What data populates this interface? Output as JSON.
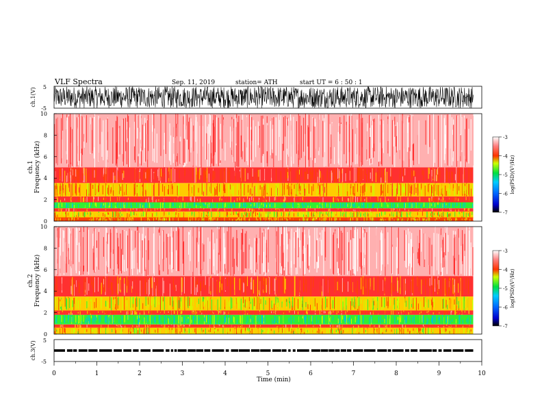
{
  "header": {
    "title": "VLF  Spectra",
    "date": "Sep. 11, 2019",
    "station": "station= ATH",
    "start": "start  UT  =    6  : 50 : 1"
  },
  "colorbar": {
    "label": "log(PSD)(V²/Hz)",
    "ticks": [
      "-3",
      "-4",
      "-5",
      "-6",
      "-7"
    ]
  },
  "chart_data": [
    {
      "type": "line",
      "name": "ch1-waveform",
      "ylabel": "ch.1(V)",
      "ylim": [
        -5,
        5
      ],
      "yticks": [
        "5",
        "-5"
      ],
      "xlim": [
        0,
        10
      ],
      "x_end": 9.8,
      "amplitude": [
        -5,
        5
      ]
    },
    {
      "type": "heatmap",
      "name": "ch1-spectrogram",
      "ylabel": "ch.1\nFrequency (kHz)",
      "ylim": [
        0,
        10
      ],
      "yticks": [
        "0",
        "2",
        "4",
        "6",
        "8",
        "10"
      ],
      "xlim": [
        0,
        10
      ],
      "x_end": 9.8,
      "clim": [
        -7,
        -3
      ],
      "bands": [
        {
          "f": [
            0.0,
            0.35
          ],
          "level": -4.3
        },
        {
          "f": [
            0.35,
            0.9
          ],
          "level": -4.6
        },
        {
          "f": [
            0.9,
            1.2
          ],
          "level": -4.0
        },
        {
          "f": [
            1.2,
            1.75
          ],
          "level": -5.2
        },
        {
          "f": [
            1.75,
            2.3
          ],
          "level": -4.0
        },
        {
          "f": [
            2.3,
            3.55
          ],
          "level": -4.4
        },
        {
          "f": [
            3.55,
            5.0
          ],
          "level": -3.9
        },
        {
          "f": [
            5.0,
            10.0
          ],
          "level": -3.45
        }
      ]
    },
    {
      "type": "heatmap",
      "name": "ch2-spectrogram",
      "ylabel": "ch.2\nFrequency (kHz)",
      "ylim": [
        0,
        10
      ],
      "yticks": [
        "0",
        "2",
        "4",
        "6",
        "8",
        "10"
      ],
      "xlim": [
        0,
        10
      ],
      "x_end": 9.8,
      "clim": [
        -7,
        -3
      ],
      "bands": [
        {
          "f": [
            0.0,
            0.6
          ],
          "level": -4.5
        },
        {
          "f": [
            0.6,
            0.9
          ],
          "level": -4.0
        },
        {
          "f": [
            0.9,
            1.8
          ],
          "level": -5.2
        },
        {
          "f": [
            1.8,
            2.2
          ],
          "level": -4.0
        },
        {
          "f": [
            2.2,
            3.5
          ],
          "level": -4.6
        },
        {
          "f": [
            3.5,
            5.4
          ],
          "level": -3.95
        },
        {
          "f": [
            5.4,
            10.0
          ],
          "level": -3.45
        }
      ]
    },
    {
      "type": "line",
      "name": "ch3-waveform",
      "ylabel": "ch.3(V)",
      "ylim": [
        -5,
        5
      ],
      "yticks": [
        "5",
        "-5"
      ],
      "xlim": [
        0,
        10
      ],
      "x_end": 9.8,
      "level": 0,
      "xlabel": "Time  (min)",
      "xticks": [
        "0",
        "1",
        "2",
        "3",
        "4",
        "5",
        "6",
        "7",
        "8",
        "9",
        "10"
      ]
    }
  ]
}
